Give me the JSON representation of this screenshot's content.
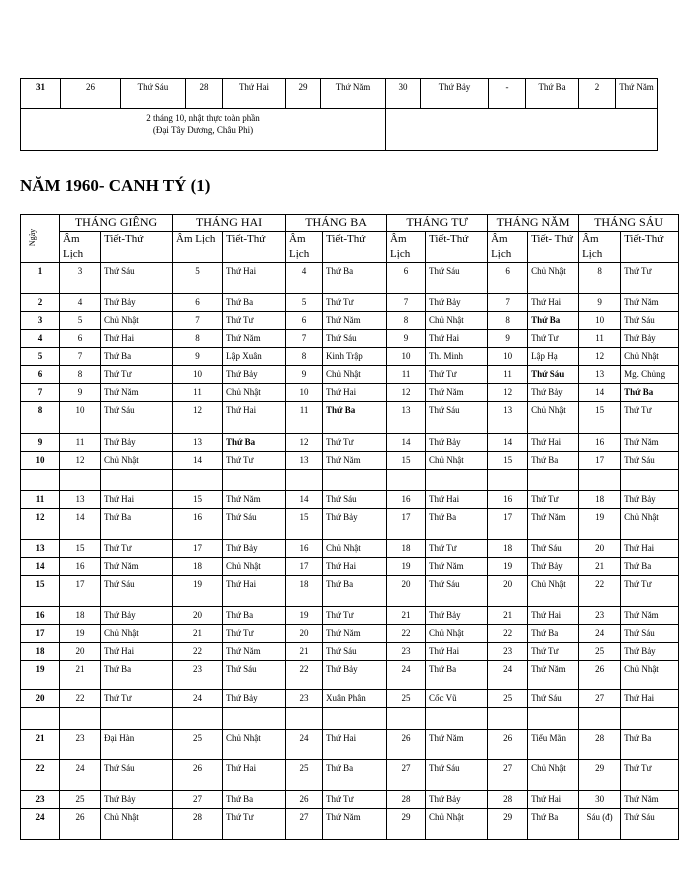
{
  "top_table": {
    "row": [
      "31",
      "26",
      "Thứ Sáu",
      "28",
      "Thứ Hai",
      "29",
      "Thứ Năm",
      "30",
      "Thứ Bảy",
      "-",
      "Thứ Ba",
      "2",
      "Thứ Năm"
    ],
    "note_line1": "2 tháng 10, nhật thực toàn phần",
    "note_line2": "(Đại Tây Dương, Châu Phi)"
  },
  "title": "NĂM 1960- CANH TÝ (1)",
  "main_table": {
    "day_header": "Ngày",
    "months": [
      "THÁNG GIÊNG",
      "THÁNG HAI",
      "THÁNG  BA",
      "THÁNG TƯ",
      "THÁNG NĂM",
      "THÁNG SÁU"
    ],
    "sub_headers": [
      [
        "Âm Lịch",
        "Tiết-Thứ"
      ],
      [
        "Âm Lịch",
        "Tiết-Thứ"
      ],
      [
        "Âm Lịch",
        "Tiết-Thứ"
      ],
      [
        "Âm Lịch",
        "Tiết-Thứ"
      ],
      [
        "Âm Lịch",
        "Tiết- Thứ"
      ],
      [
        "Âm Lịch",
        "Tiết-Thứ"
      ]
    ],
    "rows": [
      [
        "1",
        "3",
        "Thứ Sáu",
        "5",
        "Thứ Hai",
        "4",
        "Thứ Ba",
        "6",
        "Thứ Sáu",
        "6",
        "Chủ Nhật",
        "8",
        "Thứ Tư"
      ],
      [
        "2",
        "4",
        "Thứ Bảy",
        "6",
        "Thứ Ba",
        "5",
        "Thứ Tư",
        "7",
        "Thứ Bảy",
        "7",
        "Thứ Hai",
        "9",
        "Thứ Năm"
      ],
      [
        "3",
        "5",
        "Chủ Nhật",
        "7",
        "Thứ Tư",
        "6",
        "Thứ Năm",
        "8",
        "Chủ Nhật",
        "8",
        {
          "text": "Thứ Ba",
          "bold": true
        },
        "10",
        "Thứ Sáu"
      ],
      [
        "4",
        "6",
        "Thứ Hai",
        "8",
        "Thứ Năm",
        "7",
        "Thứ Sáu",
        "9",
        "Thứ Hai",
        "9",
        "Thứ Tư",
        "11",
        "Thứ Bảy"
      ],
      [
        "5",
        "7",
        "Thứ Ba",
        "9",
        "Lập Xuân",
        "8",
        "Kinh Trập",
        "10",
        "Th. Minh",
        "10",
        "Lập Hạ",
        "12",
        "Chủ Nhật"
      ],
      [
        "6",
        "8",
        "Thứ Tư",
        "10",
        "Thứ Bảy",
        "9",
        "Chủ Nhật",
        "11",
        "Thứ Tư",
        "11",
        {
          "text": "Thứ Sáu",
          "bold": true
        },
        "13",
        "Mg. Chủng"
      ],
      [
        "7",
        "9",
        "Thứ Năm",
        "11",
        "Chủ Nhật",
        "10",
        "Thứ Hai",
        "12",
        "Thứ Năm",
        "12",
        "Thứ Bảy",
        "14",
        {
          "text": "Thứ Ba",
          "bold": true
        }
      ],
      [
        "8",
        "10",
        "Thứ Sáu",
        "12",
        "Thứ Hai",
        "11",
        {
          "text": "Thứ Ba",
          "bold": true
        },
        "13",
        "Thứ Sáu",
        "13",
        "Chủ Nhật",
        "15",
        "Thứ Tư"
      ],
      [
        "9",
        "11",
        "Thứ Bảy",
        "13",
        {
          "text": "Thứ Ba",
          "bold": true
        },
        "12",
        "Thứ Tư",
        "14",
        "Thứ Bảy",
        "14",
        "Thứ Hai",
        "16",
        "Thứ Năm"
      ],
      [
        "10",
        "12",
        "Chủ Nhật",
        "14",
        "Thứ Tư",
        "13",
        "Thứ Năm",
        "15",
        "Chủ Nhật",
        "15",
        "Thứ Ba",
        "17",
        "Thứ Sáu"
      ],
      [
        "",
        "",
        "",
        "",
        "",
        "",
        "",
        "",
        "",
        "",
        "",
        "",
        ""
      ],
      [
        "11",
        "13",
        "Thứ Hai",
        "15",
        "Thứ Năm",
        "14",
        "Thứ Sáu",
        "16",
        "Thứ Hai",
        "16",
        "Thứ Tư",
        "18",
        "Thứ Bảy"
      ],
      [
        "12",
        "14",
        "Thứ Ba",
        "16",
        "Thứ Sáu",
        "15",
        "Thứ Bảy",
        "17",
        "Thứ Ba",
        "17",
        "Thứ Năm",
        "19",
        "Chủ Nhật"
      ],
      [
        "13",
        "15",
        "Thứ Tư",
        "17",
        "Thứ Bảy",
        "16",
        "Chủ Nhật",
        "18",
        "Thứ Tư",
        "18",
        "Thứ Sáu",
        "20",
        "Thứ Hai"
      ],
      [
        "14",
        "16",
        "Thứ Năm",
        "18",
        "Chủ Nhật",
        "17",
        "Thứ Hai",
        "19",
        "Thứ Năm",
        "19",
        "Thứ Bảy",
        "21",
        "Thứ Ba"
      ],
      [
        "15",
        "17",
        "Thứ Sáu",
        "19",
        "Thứ Hai",
        "18",
        "Thứ Ba",
        "20",
        "Thứ Sáu",
        "20",
        "Chủ Nhật",
        "22",
        "Thứ Tư"
      ],
      [
        "16",
        "18",
        "Thứ Bảy",
        "20",
        "Thứ Ba",
        "19",
        "Thứ Tư",
        "21",
        "Thứ Bảy",
        "21",
        "Thứ Hai",
        "23",
        "Thứ Năm"
      ],
      [
        "17",
        "19",
        "Chủ Nhật",
        "21",
        "Thứ Tư",
        "20",
        "Thứ Năm",
        "22",
        "Chủ Nhật",
        "22",
        "Thứ Ba",
        "24",
        "Thứ Sáu"
      ],
      [
        "18",
        "20",
        "Thứ Hai",
        "22",
        "Thứ Năm",
        "21",
        "Thứ Sáu",
        "23",
        "Thứ Hai",
        "23",
        "Thứ Tư",
        "25",
        "Thứ Bảy"
      ],
      [
        "19",
        "21",
        "Thứ Ba",
        "23",
        "Thứ Sáu",
        "22",
        "Thứ Bảy",
        "24",
        "Thứ Ba",
        "24",
        "Thứ Năm",
        "26",
        "Chủ Nhật"
      ],
      [
        "20",
        "22",
        "Thứ Tư",
        "24",
        "Thứ Bảy",
        "23",
        "Xuân Phân",
        "25",
        "Cốc Vũ",
        "25",
        "Thứ Sáu",
        "27",
        "Thứ Hai"
      ],
      [
        "",
        "",
        "",
        "",
        "",
        "",
        "",
        "",
        "",
        "",
        "",
        "",
        ""
      ],
      [
        "21",
        "23",
        "Đại Hàn",
        "25",
        "Chủ Nhật",
        "24",
        "Thứ Hai",
        "26",
        "Thứ Năm",
        "26",
        "Tiểu Mãn",
        "28",
        "Thứ Ba"
      ],
      [
        "22",
        "24",
        "Thứ Sáu",
        "26",
        "Thứ Hai",
        "25",
        "Thứ Ba",
        "27",
        "Thứ Sáu",
        "27",
        "Chủ Nhật",
        "29",
        "Thứ Tư"
      ],
      [
        "23",
        "25",
        "Thứ Bảy",
        "27",
        "Thứ Ba",
        "26",
        "Thứ Tư",
        "28",
        "Thứ Bảy",
        "28",
        "Thứ Hai",
        "30",
        "Thứ Năm"
      ],
      [
        "24",
        "26",
        "Chủ Nhật",
        "28",
        "Thứ Tư",
        "27",
        "Thứ Năm",
        "29",
        "Chủ Nhật",
        "29",
        "Thứ Ba",
        "Sáu (đ)",
        "Thứ Sáu"
      ]
    ]
  }
}
